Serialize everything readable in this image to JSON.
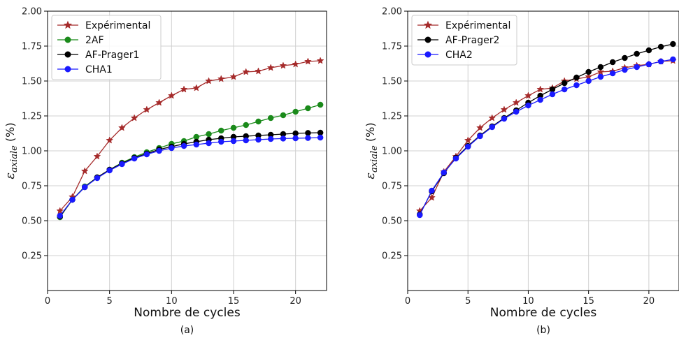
{
  "chart_data": [
    {
      "type": "line",
      "panel_label": "(a)",
      "xlabel": "Nombre de cycles",
      "ylabel_main": "ε",
      "ylabel_sub": "axiale",
      "ylabel_unit": " (%)",
      "xlim": [
        0,
        22.5
      ],
      "ylim": [
        0,
        2.0
      ],
      "xticks": [
        0,
        5,
        10,
        15,
        20
      ],
      "yticks": [
        0.25,
        0.5,
        0.75,
        1.0,
        1.25,
        1.5,
        1.75,
        2.0
      ],
      "ytick_labels": [
        "0.25",
        "0.50",
        "0.75",
        "1.00",
        "1.25",
        "1.50",
        "1.75",
        "2.00"
      ],
      "grid": true,
      "legend_position": "top-left",
      "x": [
        1,
        2,
        3,
        4,
        5,
        6,
        7,
        8,
        9,
        10,
        11,
        12,
        13,
        14,
        15,
        16,
        17,
        18,
        19,
        20,
        21,
        22
      ],
      "series": [
        {
          "name": "Expérimental",
          "color": "#a52a2a",
          "marker": "star",
          "values": [
            0.57,
            0.67,
            0.855,
            0.96,
            1.075,
            1.165,
            1.235,
            1.295,
            1.345,
            1.395,
            1.44,
            1.45,
            1.5,
            1.515,
            1.53,
            1.565,
            1.57,
            1.595,
            1.61,
            1.62,
            1.64,
            1.645
          ]
        },
        {
          "name": "2AF",
          "color": "#1a8a1a",
          "marker": "circle",
          "values": [
            0.525,
            0.65,
            0.745,
            0.81,
            0.865,
            0.915,
            0.955,
            0.99,
            1.02,
            1.05,
            1.07,
            1.1,
            1.12,
            1.145,
            1.165,
            1.185,
            1.21,
            1.235,
            1.255,
            1.28,
            1.305,
            1.33
          ]
        },
        {
          "name": "AF-Prager1",
          "color": "#000000",
          "marker": "circle",
          "values": [
            0.53,
            0.65,
            0.74,
            0.81,
            0.865,
            0.91,
            0.95,
            0.98,
            1.01,
            1.03,
            1.05,
            1.065,
            1.08,
            1.09,
            1.1,
            1.105,
            1.11,
            1.115,
            1.12,
            1.125,
            1.128,
            1.13
          ]
        },
        {
          "name": "CHA1",
          "color": "#1a1aff",
          "marker": "circle",
          "values": [
            0.535,
            0.65,
            0.74,
            0.805,
            0.86,
            0.905,
            0.945,
            0.975,
            1.0,
            1.02,
            1.035,
            1.045,
            1.055,
            1.065,
            1.07,
            1.075,
            1.08,
            1.085,
            1.088,
            1.09,
            1.092,
            1.095
          ]
        }
      ]
    },
    {
      "type": "line",
      "panel_label": "(b)",
      "xlabel": "Nombre de cycles",
      "ylabel_main": "ε",
      "ylabel_sub": "axiale",
      "ylabel_unit": " (%)",
      "xlim": [
        0,
        22.5
      ],
      "ylim": [
        0,
        2.0
      ],
      "xticks": [
        0,
        5,
        10,
        15,
        20
      ],
      "yticks": [
        0.25,
        0.5,
        0.75,
        1.0,
        1.25,
        1.5,
        1.75,
        2.0
      ],
      "ytick_labels": [
        "0.25",
        "0.50",
        "0.75",
        "1.00",
        "1.25",
        "1.50",
        "1.75",
        "2.00"
      ],
      "grid": true,
      "legend_position": "top-left",
      "x": [
        1,
        2,
        3,
        4,
        5,
        6,
        7,
        8,
        9,
        10,
        11,
        12,
        13,
        14,
        15,
        16,
        17,
        18,
        19,
        20,
        21,
        22
      ],
      "series": [
        {
          "name": "Expérimental",
          "color": "#a52a2a",
          "marker": "star",
          "values": [
            0.57,
            0.665,
            0.85,
            0.96,
            1.075,
            1.165,
            1.235,
            1.295,
            1.345,
            1.395,
            1.44,
            1.45,
            1.5,
            1.515,
            1.53,
            1.565,
            1.57,
            1.595,
            1.61,
            1.62,
            1.64,
            1.645
          ]
        },
        {
          "name": "AF-Prager2",
          "color": "#000000",
          "marker": "circle",
          "values": [
            0.545,
            0.71,
            0.84,
            0.95,
            1.035,
            1.11,
            1.175,
            1.235,
            1.29,
            1.345,
            1.395,
            1.44,
            1.485,
            1.525,
            1.565,
            1.6,
            1.635,
            1.665,
            1.695,
            1.72,
            1.745,
            1.765
          ]
        },
        {
          "name": "CHA2",
          "color": "#1a1aff",
          "marker": "circle",
          "values": [
            0.54,
            0.715,
            0.845,
            0.945,
            1.03,
            1.105,
            1.17,
            1.23,
            1.28,
            1.325,
            1.365,
            1.405,
            1.44,
            1.47,
            1.5,
            1.53,
            1.555,
            1.58,
            1.6,
            1.62,
            1.64,
            1.655
          ]
        }
      ]
    }
  ]
}
